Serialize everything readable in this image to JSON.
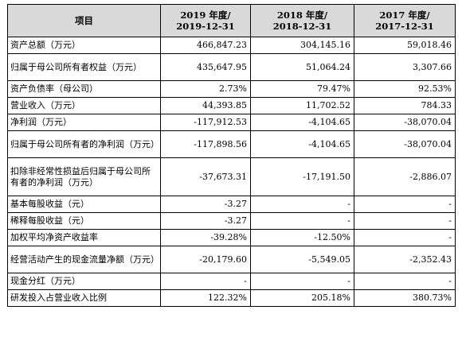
{
  "table": {
    "header": {
      "item": "项目",
      "col1_line1": "2019 年度/",
      "col1_line2": "2019-12-31",
      "col2_line1": "2018 年度/",
      "col2_line2": "2018-12-31",
      "col3_line1": "2017 年度/",
      "col3_line2": "2017-12-31"
    },
    "rows": [
      {
        "label": "资产总额（万元）",
        "v2019": "466,847.23",
        "v2018": "304,145.16",
        "v2017": "59,018.46"
      },
      {
        "label": "归属于母公司所有者权益（万元）",
        "v2019": "435,647.95",
        "v2018": "51,064.24",
        "v2017": "3,307.66"
      },
      {
        "label": "资产负债率（母公司）",
        "v2019": "2.73%",
        "v2018": "79.47%",
        "v2017": "92.53%"
      },
      {
        "label": "营业收入（万元）",
        "v2019": "44,393.85",
        "v2018": "11,702.52",
        "v2017": "784.33"
      },
      {
        "label": "净利润（万元）",
        "v2019": "-117,912.53",
        "v2018": "-4,104.65",
        "v2017": "-38,070.04"
      },
      {
        "label": "归属于母公司所有者的净利润（万元）",
        "v2019": "-117,898.56",
        "v2018": "-4,104.65",
        "v2017": "-38,070.04"
      },
      {
        "label": "扣除非经常性损益后归属于母公司所有者的净利润（万元）",
        "v2019": "-37,673.31",
        "v2018": "-17,191.50",
        "v2017": "-2,886.07"
      },
      {
        "label": "基本每股收益（元）",
        "v2019": "-3.27",
        "v2018": "-",
        "v2017": "-"
      },
      {
        "label": "稀释每股收益（元）",
        "v2019": "-3.27",
        "v2018": "-",
        "v2017": "-"
      },
      {
        "label": "加权平均净资产收益率",
        "v2019": "-39.28%",
        "v2018": "-12.50%",
        "v2017": "-"
      },
      {
        "label": "经营活动产生的现金流量净额（万元）",
        "v2019": "-20,179.60",
        "v2018": "-5,549.05",
        "v2017": "-2,352.43"
      },
      {
        "label": "现金分红（万元）",
        "v2019": "-",
        "v2018": "-",
        "v2017": "-"
      },
      {
        "label": "研发投入占营业收入比例",
        "v2019": "122.32%",
        "v2018": "205.18%",
        "v2017": "380.73%"
      }
    ]
  }
}
